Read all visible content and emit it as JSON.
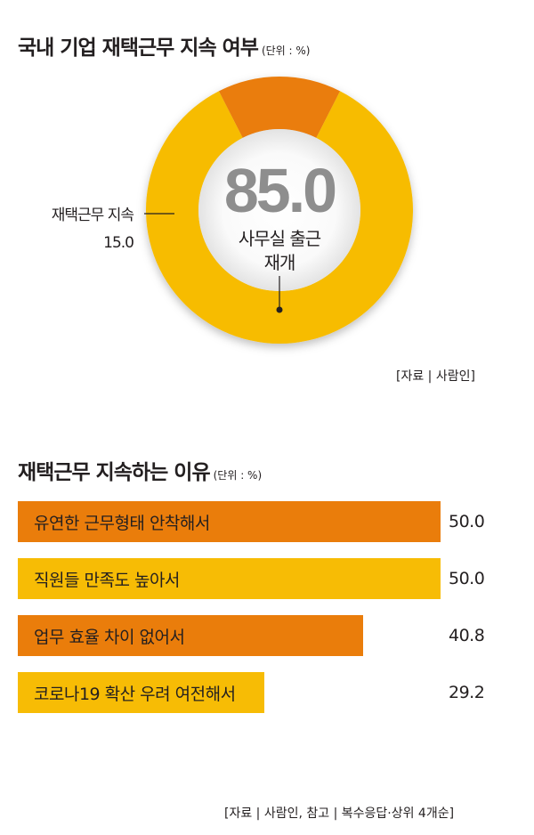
{
  "section1": {
    "title": "국내 기업 재택근무 지속 여부",
    "unit": "(단위 : %)",
    "source": "[자료 | 사람인]"
  },
  "section2": {
    "title": "재택근무 지속하는 이유",
    "unit": "(단위 : %)",
    "source": "[자료 | 사람인, 참고 | 복수응답·상위 4개순]"
  },
  "colors": {
    "orange": "#ea7d0b",
    "yellow": "#f7bc05",
    "gray_text": "#8e8e8e"
  },
  "chart_data": [
    {
      "type": "pie",
      "style": "donut",
      "slices": [
        {
          "label": "사무실 출근 재개",
          "label_lines": [
            "사무실 출근",
            "재개"
          ],
          "value": 85.0,
          "value_text": "85.0",
          "color": "#f7bc05"
        },
        {
          "label": "재택근무 지속",
          "value": 15.0,
          "value_text": "15.0",
          "color": "#ea7d0b"
        }
      ]
    },
    {
      "type": "bar",
      "orientation": "horizontal",
      "xlim": [
        0,
        50
      ],
      "categories": [
        "유연한 근무형태 안착해서",
        "직원들 만족도 높아서",
        "업무 효율 차이 없어서",
        "코로나19 확산 우려 여전해서"
      ],
      "values": [
        50.0,
        50.0,
        40.8,
        29.2
      ],
      "value_labels": [
        "50.0",
        "50.0",
        "40.8",
        "29.2"
      ],
      "colors": [
        "#ea7d0b",
        "#f7bc05",
        "#ea7d0b",
        "#f7bc05"
      ]
    }
  ]
}
